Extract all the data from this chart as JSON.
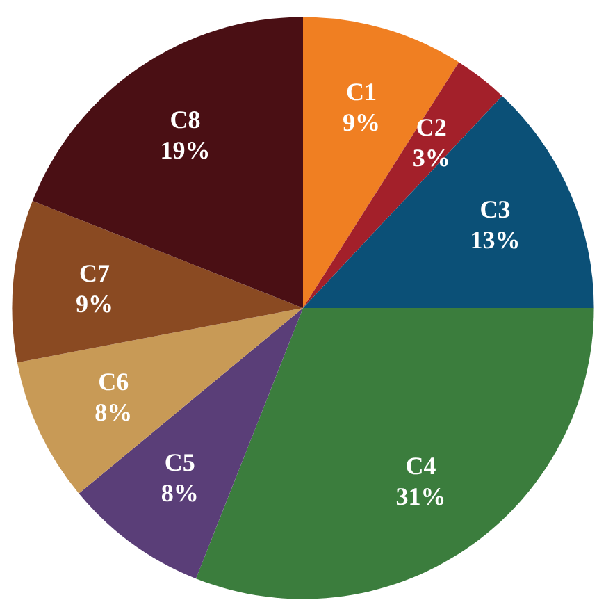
{
  "chart_data": {
    "type": "pie",
    "categories": [
      "C1",
      "C2",
      "C3",
      "C4",
      "C5",
      "C6",
      "C7",
      "C8"
    ],
    "values": [
      9,
      3,
      13,
      31,
      8,
      8,
      9,
      19
    ],
    "colors": [
      "#f07f22",
      "#a3202a",
      "#0b5077",
      "#3b7d3d",
      "#5a3e78",
      "#c89a56",
      "#8a4a22",
      "#4a0f14"
    ],
    "value_labels": [
      "9%",
      "3%",
      "13%",
      "31%",
      "8%",
      "8%",
      "9%",
      "19%"
    ],
    "legend": false
  }
}
